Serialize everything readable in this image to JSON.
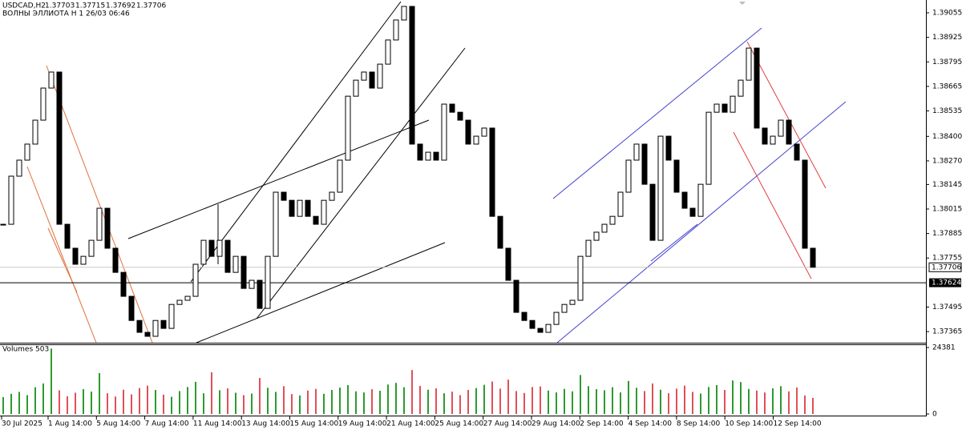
{
  "chart_data": {
    "type": "candlestick",
    "title": "USDCAD,H2",
    "ohlc": [
      1.37703,
      1.37715,
      1.37692,
      1.37706
    ],
    "subtitle": "ВОЛНЫ ЭЛЛИОТА H 1 26/03 06:46",
    "volume_title": "Volumes 503",
    "ylim": [
      1.37306,
      1.39123
    ],
    "yticks": [
      1.39055,
      1.38925,
      1.38795,
      1.38665,
      1.38535,
      {
        "value": 1.384,
        "label": "1.38400"
      },
      {
        "value": 1.3827,
        "label": "1.38270"
      },
      1.38145,
      1.38015,
      1.37885,
      1.37755,
      1.37495,
      1.37365
    ],
    "current_price": 1.37706,
    "level": 1.37624,
    "x_labels": [
      "30 Jul 2025",
      "1 Aug 14:00",
      "5 Aug 14:00",
      "7 Aug 14:00",
      "11 Aug 14:00",
      "13 Aug 14:00",
      "15 Aug 14:00",
      "19 Aug 14:00",
      "21 Aug 14:00",
      "25 Aug 14:00",
      "27 Aug 14:00",
      "29 Aug 14:00",
      "2 Sep 14:00",
      "4 Sep 14:00",
      "8 Sep 14:00",
      "10 Sep 14:00",
      "12 Sep 14:00"
    ],
    "close": [
      1.37934,
      1.38189,
      1.38274,
      1.38359,
      1.38486,
      1.38656,
      1.38741,
      1.37934,
      1.37807,
      1.37722,
      1.37764,
      1.37849,
      1.38019,
      1.37807,
      1.37679,
      1.37552,
      1.37424,
      1.37361,
      1.3734,
      1.37424,
      1.37382,
      1.37509,
      1.37531,
      1.37552,
      1.37722,
      1.37849,
      1.37764,
      1.37849,
      1.37679,
      1.37764,
      1.37594,
      1.37637,
      1.37488,
      1.37764,
      1.38104,
      1.38061,
      1.37976,
      1.38061,
      1.37976,
      1.37934,
      1.38061,
      1.38104,
      1.38274,
      1.38613,
      1.38698,
      1.38741,
      1.38656,
      1.38783,
      1.38911,
      1.39017,
      1.39089,
      1.38359,
      1.38274,
      1.38316,
      1.38274,
      1.38571,
      1.38528,
      1.38486,
      1.38359,
      1.38401,
      1.38444,
      1.37976,
      1.37807,
      1.37637,
      1.37467,
      1.37424,
      1.37382,
      1.37361,
      1.37403,
      1.37467,
      1.37509,
      1.37531,
      1.37764,
      1.37849,
      1.37892,
      1.37934,
      1.37976,
      1.38104,
      1.38274,
      1.38359,
      1.38146,
      1.37849,
      1.38401,
      1.38274,
      1.38104,
      1.38019,
      1.37976,
      1.38146,
      1.38528,
      1.38571,
      1.38528,
      1.38613,
      1.38698,
      1.38868,
      1.38444,
      1.38359,
      1.38401,
      1.38486,
      1.38359,
      1.38274,
      1.37807,
      1.37706
    ],
    "volume": [
      6200,
      7400,
      8100,
      6900,
      9800,
      11200,
      24000,
      8700,
      6500,
      7800,
      9100,
      8200,
      15000,
      7600,
      6400,
      8900,
      7200,
      9500,
      10400,
      8800,
      7100,
      6300,
      8400,
      9900,
      11800,
      7600,
      15300,
      8700,
      9400,
      7800,
      6900,
      7500,
      13200,
      9600,
      8100,
      10200,
      7300,
      6800,
      8600,
      9200,
      7400,
      8800,
      9700,
      10600,
      8300,
      7900,
      9100,
      8500,
      10800,
      11400,
      9800,
      16100,
      10300,
      8900,
      9400,
      7600,
      8200,
      6900,
      8800,
      9500,
      10700,
      11900,
      9300,
      12600,
      8400,
      7700,
      9900,
      10100,
      8600,
      7900,
      9200,
      8300,
      14300,
      10200,
      9100,
      8700,
      9800,
      7900,
      12100,
      9600,
      8400,
      11200,
      8900,
      7600,
      9300,
      10400,
      8100,
      7500,
      9900,
      10600,
      8800,
      12300,
      11700,
      9200,
      8600,
      7900,
      9400,
      10200,
      8300,
      9700,
      6800,
      5900
    ],
    "volume_ylim": [
      0,
      24381
    ],
    "volume_yticks": [
      24381,
      0
    ],
    "up_color": "#2e9a2e",
    "down_color": "#e0505a",
    "candle_color": "#000000"
  }
}
